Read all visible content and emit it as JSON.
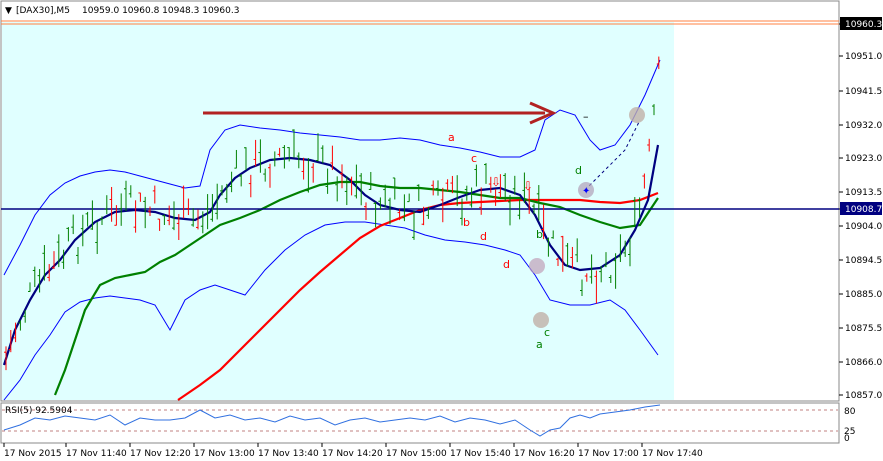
{
  "window": {
    "symbol": "[DAX30],M5",
    "ohlc": "10959.0 10960.8 10948.3 10960.3",
    "dropdown_icon": "triangle-down-icon"
  },
  "price_axis": {
    "labels": [
      "10960.3",
      "10951.0",
      "10941.5",
      "10932.0",
      "10923.0",
      "10913.5",
      "10908.7",
      "10904.0",
      "10894.5",
      "10885.0",
      "10875.5",
      "10866.0",
      "10857.0"
    ],
    "current_price": "10960.3",
    "hline_price": "10908.7",
    "current_price_color": "#000000",
    "hline_color": "#000080"
  },
  "time_axis": {
    "labels": [
      "17 Nov 2015",
      "17 Nov 11:40",
      "17 Nov 12:20",
      "17 Nov 13:00",
      "17 Nov 13:40",
      "17 Nov 14:20",
      "17 Nov 15:00",
      "17 Nov 15:40",
      "17 Nov 16:20",
      "17 Nov 17:00",
      "17 Nov 17:40"
    ]
  },
  "rsi": {
    "label": "RSI(5) 92.5904",
    "levels": [
      "80",
      "25",
      "0"
    ]
  },
  "wave_labels": {
    "a_top": "a",
    "c_top": "c",
    "b_mid": "b",
    "d_mid": "d",
    "d_low": "d",
    "b_green": "b",
    "a_green": "a",
    "c_green": "c",
    "d_green": "d"
  },
  "arrow_symbols": {
    "down1": "⇩",
    "down2": "⇩"
  },
  "dash_mark": "–",
  "colors": {
    "highlight_bg": "#e0ffff",
    "blue_ma": "#000080",
    "green_ma": "#008000",
    "red_ma": "#ff0000",
    "bands": "#0000ff",
    "bars": "#008000",
    "red_bars": "#ff0000",
    "arrow": "#b22222"
  }
}
